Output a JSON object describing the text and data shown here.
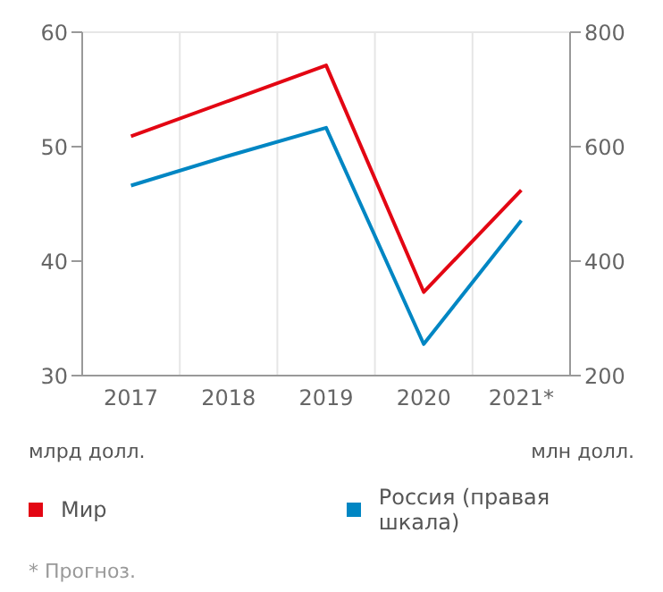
{
  "chart_data": {
    "type": "line",
    "categories": [
      "2017",
      "2018",
      "2019",
      "2020",
      "2021*"
    ],
    "series": [
      {
        "name": "Мир",
        "color": "#e30613",
        "values": [
          50.9,
          54,
          57.1,
          37.3,
          46.2
        ]
      },
      {
        "name": "Россия (правая шкала)",
        "color": "#0086c3",
        "values": [
          532,
          584,
          633,
          255,
          471
        ],
        "axis": "y2"
      }
    ],
    "ylim": [
      30,
      60
    ],
    "yticks": [
      30,
      40,
      50,
      60
    ],
    "y2lim": [
      200,
      800
    ],
    "y2ticks": [
      200,
      400,
      600,
      800
    ],
    "ylabel": "млрд долл.",
    "y2label": "млн долл.",
    "grid": true,
    "legend": "bottom",
    "marker": "none",
    "line_style": "solid",
    "annotations": [
      "* Прогноз."
    ]
  }
}
